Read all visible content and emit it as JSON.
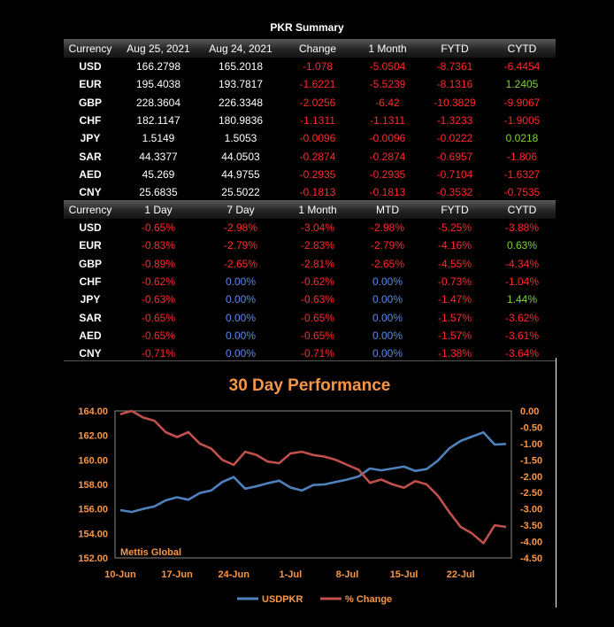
{
  "title": "PKR Summary",
  "table1": {
    "headers": [
      "Currency",
      "Aug 25, 2021",
      "Aug 24, 2021",
      "Change",
      "1 Month",
      "FYTD",
      "CYTD"
    ],
    "rows": [
      [
        "USD",
        "166.2798",
        "165.2018",
        "-1.078",
        "-5.0504",
        "-8.7361",
        "-6.4454"
      ],
      [
        "EUR",
        "195.4038",
        "193.7817",
        "-1.6221",
        "-5.5239",
        "-8.1316",
        "1.2405"
      ],
      [
        "GBP",
        "228.3604",
        "226.3348",
        "-2.0256",
        "-6.42",
        "-10.3829",
        "-9.9067"
      ],
      [
        "CHF",
        "182.1147",
        "180.9836",
        "-1.1311",
        "-1.1311",
        "-1.3233",
        "-1.9005"
      ],
      [
        "JPY",
        "1.5149",
        "1.5053",
        "-0.0096",
        "-0.0096",
        "-0.0222",
        "0.0218"
      ],
      [
        "SAR",
        "44.3377",
        "44.0503",
        "-0.2874",
        "-0.2874",
        "-0.6957",
        "-1.806"
      ],
      [
        "AED",
        "45.269",
        "44.9755",
        "-0.2935",
        "-0.2935",
        "-0.7104",
        "-1.6327"
      ],
      [
        "CNY",
        "25.6835",
        "25.5022",
        "-0.1813",
        "-0.1813",
        "-0.3532",
        "-0.7535"
      ]
    ]
  },
  "table2": {
    "headers": [
      "Currency",
      "1 Day",
      "7 Day",
      "1 Month",
      "MTD",
      "FYTD",
      "CYTD"
    ],
    "rows": [
      [
        "USD",
        "-0.65%",
        "-2.98%",
        "-3.04%",
        "-2.98%",
        "-5.25%",
        "-3.88%"
      ],
      [
        "EUR",
        "-0.83%",
        "-2.79%",
        "-2.83%",
        "-2.79%",
        "-4.16%",
        "0.63%"
      ],
      [
        "GBP",
        "-0.89%",
        "-2.65%",
        "-2.81%",
        "-2.65%",
        "-4.55%",
        "-4.34%"
      ],
      [
        "CHF",
        "-0.62%",
        "0.00%",
        "-0.62%",
        "0.00%",
        "-0.73%",
        "-1.04%"
      ],
      [
        "JPY",
        "-0.63%",
        "0.00%",
        "-0.63%",
        "0.00%",
        "-1.47%",
        "1.44%"
      ],
      [
        "SAR",
        "-0.65%",
        "0.00%",
        "-0.65%",
        "0.00%",
        "-1.57%",
        "-3.62%"
      ],
      [
        "AED",
        "-0.65%",
        "0.00%",
        "-0.65%",
        "0.00%",
        "-1.57%",
        "-3.61%"
      ],
      [
        "CNY",
        "-0.71%",
        "0.00%",
        "-0.71%",
        "0.00%",
        "-1.38%",
        "-3.64%"
      ]
    ]
  },
  "colors": {
    "negative": "#ff2a2a",
    "positive": "#7fd13b",
    "zero": "#5b8ae6",
    "usdpkr": "#4f81bd",
    "pct": "#c0504d",
    "accent": "#f79646"
  },
  "chart_data": {
    "type": "line",
    "title": "30 Day Performance",
    "x_ticks": [
      "10-Jun",
      "17-Jun",
      "24-Jun",
      "1-Jul",
      "8-Jul",
      "15-Jul",
      "22-Jul"
    ],
    "y_left": {
      "ylim": [
        152,
        164
      ],
      "ticks": [
        "164.00",
        "162.00",
        "160.00",
        "158.00",
        "156.00",
        "154.00",
        "152.00"
      ]
    },
    "y_right": {
      "ylim": [
        -4.5,
        0
      ],
      "ticks": [
        "0.00",
        "-0.50",
        "-1.00",
        "-1.50",
        "-2.00",
        "-2.50",
        "-3.00",
        "-3.50",
        "-4.00",
        "-4.50"
      ]
    },
    "x": [
      "10-Jun",
      "11-Jun",
      "14-Jun",
      "15-Jun",
      "16-Jun",
      "17-Jun",
      "18-Jun",
      "21-Jun",
      "22-Jun",
      "23-Jun",
      "24-Jun",
      "25-Jun",
      "28-Jun",
      "29-Jun",
      "30-Jun",
      "1-Jul",
      "2-Jul",
      "5-Jul",
      "6-Jul",
      "7-Jul",
      "8-Jul",
      "9-Jul",
      "12-Jul",
      "13-Jul",
      "14-Jul",
      "15-Jul",
      "16-Jul",
      "19-Jul",
      "20-Jul",
      "21-Jul",
      "22-Jul",
      "23-Jul",
      "26-Jul",
      "27-Jul",
      "28-Jul"
    ],
    "series": [
      {
        "name": "USDPKR",
        "axis": "left",
        "values": [
          155.9,
          155.75,
          156.0,
          156.2,
          156.7,
          156.95,
          156.75,
          157.3,
          157.5,
          158.2,
          158.6,
          157.65,
          157.85,
          158.1,
          158.3,
          157.75,
          157.5,
          157.95,
          158.0,
          158.2,
          158.4,
          158.65,
          159.3,
          159.15,
          159.3,
          159.45,
          159.1,
          159.25,
          159.95,
          160.95,
          161.55,
          161.9,
          162.25,
          161.25,
          161.3
        ]
      },
      {
        "name": "% Change",
        "axis": "right",
        "values": [
          -0.1,
          0.0,
          -0.2,
          -0.3,
          -0.65,
          -0.8,
          -0.65,
          -1.0,
          -1.15,
          -1.5,
          -1.65,
          -1.25,
          -1.35,
          -1.55,
          -1.6,
          -1.3,
          -1.25,
          -1.35,
          -1.4,
          -1.5,
          -1.65,
          -1.8,
          -2.2,
          -2.1,
          -2.25,
          -2.35,
          -2.15,
          -2.25,
          -2.6,
          -3.1,
          -3.55,
          -3.75,
          -4.05,
          -3.5,
          -3.55
        ]
      }
    ],
    "legend_position": "bottom",
    "watermark": "Mettis Global"
  }
}
